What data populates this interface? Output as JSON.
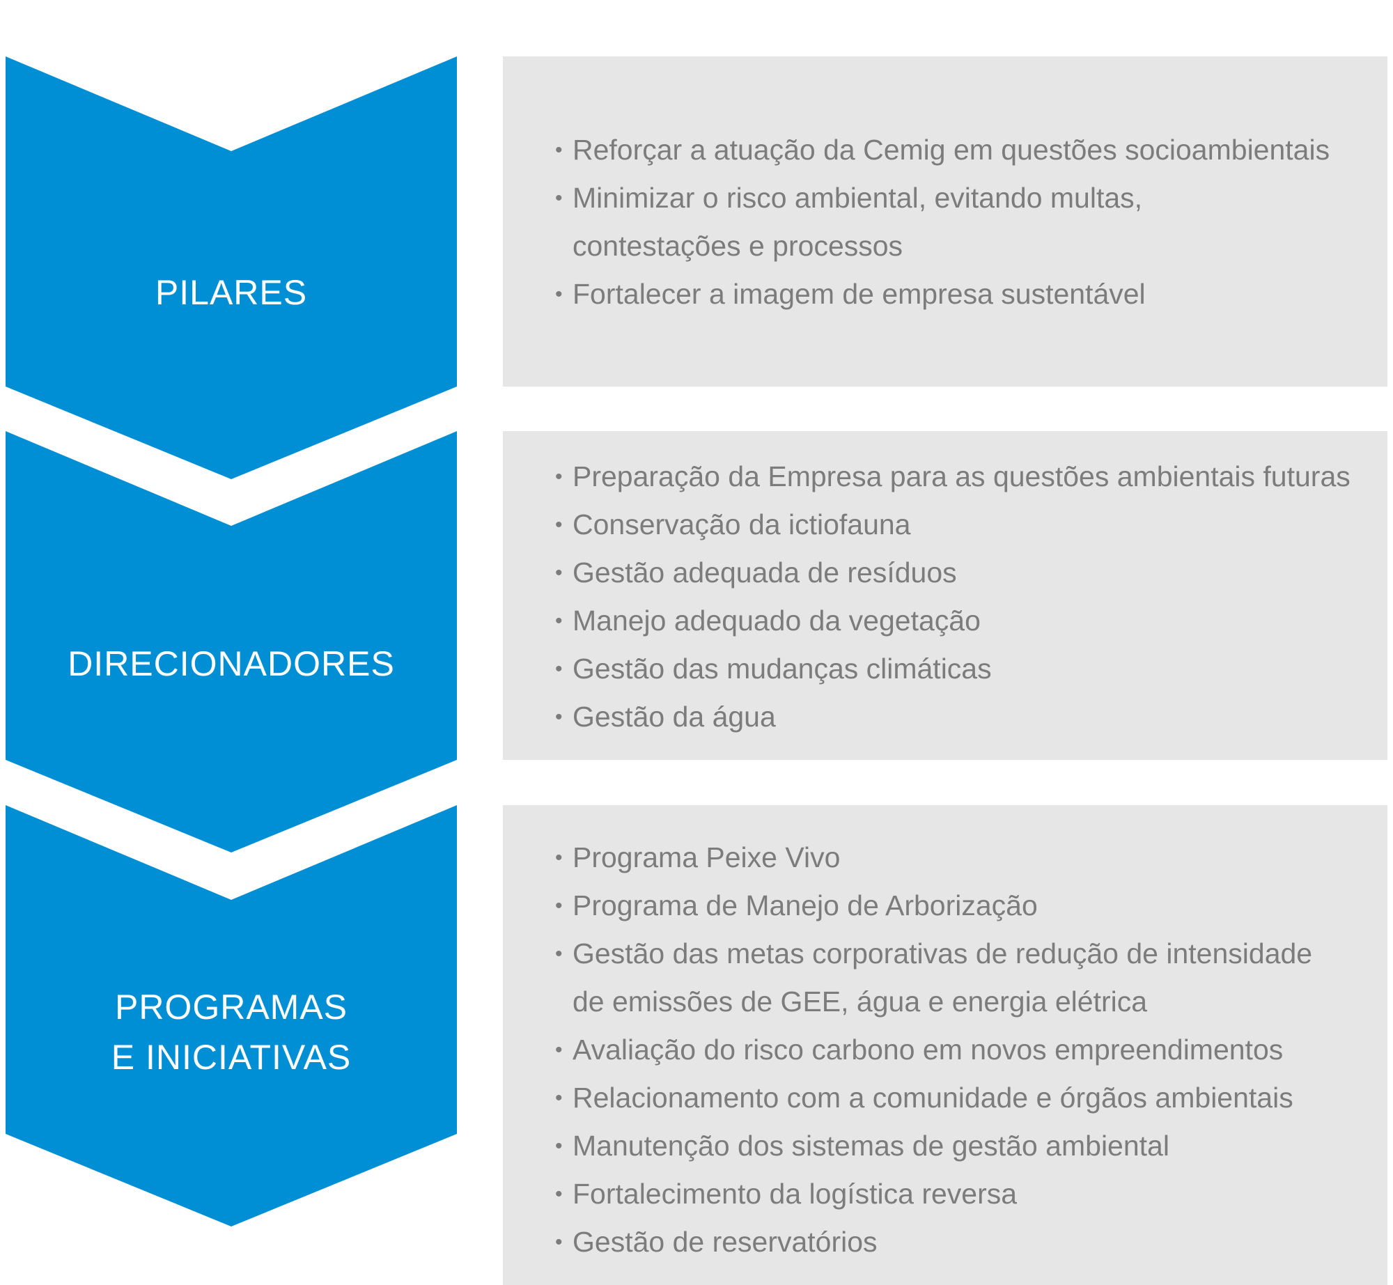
{
  "colors": {
    "chevron_fill": "#008fd5",
    "panel_fill": "#e6e6e6",
    "panel_text": "#7c7c7c",
    "label_text": "#ffffff"
  },
  "sections": [
    {
      "label_lines": [
        "PILARES"
      ],
      "items": [
        {
          "lines": [
            "Reforçar a atuação da Cemig em questões socioambientais"
          ]
        },
        {
          "lines": [
            "Minimizar o risco ambiental, evitando multas,",
            "contestações e processos"
          ]
        },
        {
          "lines": [
            "Fortalecer a imagem de empresa sustentável"
          ]
        }
      ]
    },
    {
      "label_lines": [
        "DIRECIONADORES"
      ],
      "items": [
        {
          "lines": [
            "Preparação da Empresa para as questões ambientais futuras"
          ]
        },
        {
          "lines": [
            "Conservação da ictiofauna"
          ]
        },
        {
          "lines": [
            "Gestão adequada de resíduos"
          ]
        },
        {
          "lines": [
            "Manejo adequado da vegetação"
          ]
        },
        {
          "lines": [
            "Gestão das mudanças climáticas"
          ]
        },
        {
          "lines": [
            "Gestão da água"
          ]
        }
      ]
    },
    {
      "label_lines": [
        "PROGRAMAS",
        "E INICIATIVAS"
      ],
      "items": [
        {
          "lines": [
            "Programa Peixe Vivo"
          ]
        },
        {
          "lines": [
            "Programa de Manejo de Arborização"
          ]
        },
        {
          "lines": [
            "Gestão das metas corporativas de redução de intensidade",
            "de emissões de GEE, água e energia elétrica"
          ]
        },
        {
          "lines": [
            "Avaliação do risco carbono em novos empreendimentos"
          ]
        },
        {
          "lines": [
            "Relacionamento com a comunidade e órgãos ambientais"
          ]
        },
        {
          "lines": [
            "Manutenção dos sistemas de gestão ambiental"
          ]
        },
        {
          "lines": [
            "Fortalecimento da logística reversa"
          ]
        },
        {
          "lines": [
            "Gestão de reservatórios"
          ]
        }
      ]
    }
  ]
}
